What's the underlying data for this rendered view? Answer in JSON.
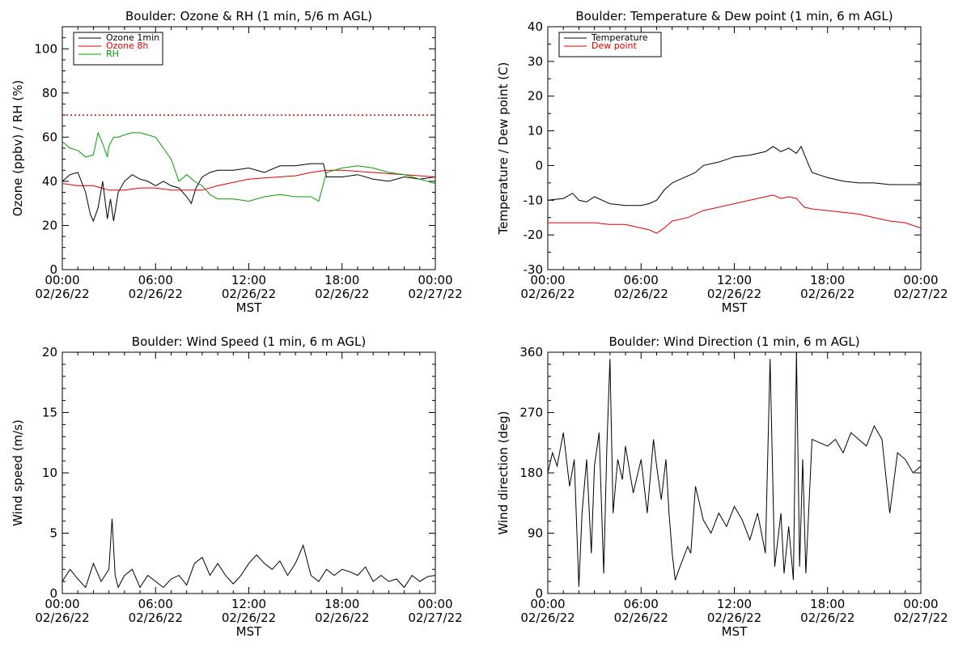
{
  "chart_data": [
    {
      "type": "line",
      "title": "Boulder: Ozone & RH (1 min, 5/6 m AGL)",
      "xlabel": "MST",
      "ylabel": "Ozone (ppbv) / RH (%)",
      "xlim": [
        0,
        24
      ],
      "ylim": [
        0,
        110
      ],
      "x_ticks": [
        0,
        6,
        12,
        18,
        24
      ],
      "x_tick_labels": [
        "00:00",
        "06:00",
        "12:00",
        "18:00",
        "00:00"
      ],
      "x_tick_dates": [
        "02/26/22",
        "02/26/22",
        "02/26/22",
        "02/26/22",
        "02/27/22"
      ],
      "y_ticks": [
        0,
        20,
        40,
        60,
        80,
        100
      ],
      "legend": "top-left",
      "reference_line": {
        "y": 70,
        "color": "#e00000",
        "style": "dotted"
      },
      "series": [
        {
          "name": "Ozone 1min",
          "color": "#000000",
          "x": [
            0,
            0.5,
            1,
            1.5,
            1.8,
            2,
            2.3,
            2.6,
            2.9,
            3.1,
            3.3,
            3.6,
            4,
            4.5,
            5,
            5.5,
            6,
            6.5,
            7,
            7.5,
            8,
            8.3,
            8.6,
            9,
            9.5,
            10,
            11,
            12,
            13,
            14,
            15,
            16,
            16.8,
            17,
            18,
            19,
            20,
            21,
            22,
            23,
            24
          ],
          "y": [
            40,
            43,
            44,
            35,
            25,
            22,
            28,
            40,
            23,
            32,
            22,
            35,
            40,
            43,
            41,
            40,
            38,
            40,
            38,
            37,
            33,
            30,
            37,
            42,
            44,
            45,
            45,
            46,
            44,
            47,
            47,
            48,
            48,
            42,
            42,
            43,
            41,
            40,
            42,
            41,
            42
          ]
        },
        {
          "name": "Ozone 8h",
          "color": "#e00000",
          "x": [
            0,
            1,
            2,
            3,
            4,
            5,
            6,
            7,
            8,
            9,
            10,
            11,
            12,
            13,
            14,
            15,
            16,
            17,
            18,
            19,
            20,
            21,
            22,
            23,
            24
          ],
          "y": [
            39,
            38,
            38,
            36,
            36,
            37,
            37,
            36,
            36,
            36,
            38,
            39.5,
            41,
            41.5,
            42,
            42.5,
            44,
            45,
            45,
            44.5,
            44,
            43.5,
            43,
            42.5,
            42
          ]
        },
        {
          "name": "RH",
          "color": "#00a000",
          "x": [
            0,
            0.5,
            1,
            1.5,
            2,
            2.3,
            2.6,
            2.9,
            3,
            3.3,
            3.6,
            4,
            4.5,
            5,
            5.5,
            6,
            6.5,
            7,
            7.5,
            8,
            8.5,
            9,
            9.5,
            10,
            11,
            12,
            13,
            14,
            15,
            16,
            16.5,
            17,
            18,
            19,
            20,
            21,
            22,
            23,
            24
          ],
          "y": [
            58,
            55,
            54,
            51,
            52,
            62,
            57,
            51,
            56,
            60,
            60,
            61,
            62,
            62,
            61,
            60,
            55,
            50,
            40,
            43,
            40,
            38,
            34,
            32,
            32,
            31,
            33,
            34,
            33,
            33,
            31,
            44,
            46,
            47,
            46,
            44,
            43,
            41,
            39
          ]
        }
      ]
    },
    {
      "type": "line",
      "title": "Boulder: Temperature & Dew point (1 min, 6 m AGL)",
      "xlabel": "MST",
      "ylabel": "Temperature / Dew point (C)",
      "xlim": [
        0,
        24
      ],
      "ylim": [
        -30,
        40
      ],
      "x_ticks": [
        0,
        6,
        12,
        18,
        24
      ],
      "x_tick_labels": [
        "00:00",
        "06:00",
        "12:00",
        "18:00",
        "00:00"
      ],
      "x_tick_dates": [
        "02/26/22",
        "02/26/22",
        "02/26/22",
        "02/26/22",
        "02/27/22"
      ],
      "y_ticks": [
        -30,
        -20,
        -10,
        0,
        10,
        20,
        30,
        40
      ],
      "legend": "top-left",
      "series": [
        {
          "name": "Temperature",
          "color": "#000000",
          "x": [
            0,
            1,
            1.6,
            2,
            2.5,
            3,
            3.5,
            4,
            5,
            6,
            6.5,
            7,
            7.5,
            8,
            8.5,
            9,
            9.5,
            10,
            11,
            12,
            13,
            14,
            14.5,
            15,
            15.5,
            16,
            16.3,
            16.8,
            17,
            18,
            19,
            20,
            21,
            22,
            23,
            24
          ],
          "y": [
            -10,
            -9.5,
            -8,
            -10,
            -10.5,
            -9,
            -10,
            -11,
            -11.5,
            -11.5,
            -11,
            -10,
            -7,
            -5,
            -4,
            -3,
            -2,
            0,
            1,
            2.5,
            3,
            4,
            5.5,
            4,
            5,
            3.5,
            5.5,
            0,
            -2,
            -3.5,
            -4.5,
            -5,
            -5,
            -5.5,
            -5.5,
            -5.5
          ]
        },
        {
          "name": "Dew point",
          "color": "#e00000",
          "x": [
            0,
            1,
            2,
            3,
            4,
            5,
            6,
            6.5,
            7,
            7.5,
            8,
            9,
            10,
            11,
            12,
            13,
            14,
            14.5,
            15,
            15.5,
            16,
            16.5,
            17,
            18,
            19,
            20,
            21,
            22,
            23,
            24
          ],
          "y": [
            -16.5,
            -16.5,
            -16.5,
            -16.5,
            -17,
            -17,
            -18,
            -18.5,
            -19.5,
            -18,
            -16,
            -15,
            -13,
            -12,
            -11,
            -10,
            -9,
            -8.5,
            -9.5,
            -9,
            -9.5,
            -12,
            -12.5,
            -13,
            -13.5,
            -14,
            -15,
            -16,
            -16.5,
            -18
          ]
        }
      ]
    },
    {
      "type": "line",
      "title": "Boulder: Wind Speed (1 min, 6 m AGL)",
      "xlabel": "MST",
      "ylabel": "Wind speed (m/s)",
      "xlim": [
        0,
        24
      ],
      "ylim": [
        0,
        20
      ],
      "x_ticks": [
        0,
        6,
        12,
        18,
        24
      ],
      "x_tick_labels": [
        "00:00",
        "06:00",
        "12:00",
        "18:00",
        "00:00"
      ],
      "x_tick_dates": [
        "02/26/22",
        "02/26/22",
        "02/26/22",
        "02/26/22",
        "02/27/22"
      ],
      "y_ticks": [
        0,
        5,
        10,
        15,
        20
      ],
      "series": [
        {
          "color": "#000000",
          "x": [
            0,
            0.5,
            1,
            1.5,
            2,
            2.5,
            3,
            3.2,
            3.4,
            3.6,
            4,
            4.5,
            5,
            5.5,
            6,
            6.5,
            7,
            7.5,
            8,
            8.5,
            9,
            9.5,
            10,
            10.5,
            11,
            11.5,
            12,
            12.5,
            13,
            13.5,
            14,
            14.5,
            15,
            15.5,
            16,
            16.5,
            17,
            17.5,
            18,
            18.5,
            19,
            19.5,
            20,
            20.5,
            21,
            21.5,
            22,
            22.5,
            23,
            23.5,
            24
          ],
          "y": [
            1,
            2,
            1.2,
            0.5,
            2.5,
            1,
            2,
            6.2,
            1.5,
            0.5,
            1.5,
            2,
            0.5,
            1.5,
            1,
            0.5,
            1.2,
            1.5,
            0.7,
            2.5,
            3,
            1.5,
            2.5,
            1.5,
            0.8,
            1.5,
            2.5,
            3.2,
            2.5,
            2,
            2.7,
            1.5,
            2.5,
            4,
            1.5,
            1,
            2,
            1.5,
            2,
            1.8,
            1.5,
            2.2,
            1,
            1.5,
            1,
            1.2,
            0.5,
            1.5,
            1,
            1.4,
            1.5
          ]
        }
      ]
    },
    {
      "type": "line",
      "title": "Boulder: Wind Direction (1 min, 6 m AGL)",
      "xlabel": "MST",
      "ylabel": "Wind direction (deg)",
      "xlim": [
        0,
        24
      ],
      "ylim": [
        0,
        360
      ],
      "x_ticks": [
        0,
        6,
        12,
        18,
        24
      ],
      "x_tick_labels": [
        "00:00",
        "06:00",
        "12:00",
        "18:00",
        "00:00"
      ],
      "x_tick_dates": [
        "02/26/22",
        "02/26/22",
        "02/26/22",
        "02/26/22",
        "02/27/22"
      ],
      "y_ticks": [
        0,
        90,
        180,
        270,
        360
      ],
      "series": [
        {
          "color": "#000000",
          "x": [
            0,
            0.3,
            0.6,
            1,
            1.4,
            1.7,
            2,
            2.2,
            2.5,
            2.8,
            3,
            3.3,
            3.6,
            3.8,
            4,
            4.2,
            4.5,
            4.8,
            5,
            5.5,
            6,
            6.4,
            6.8,
            7,
            7.3,
            7.6,
            7.8,
            8,
            8.2,
            8.5,
            9,
            9.2,
            9.5,
            10,
            10.5,
            11,
            11.5,
            12,
            12.5,
            13,
            13.5,
            14,
            14.3,
            14.6,
            15,
            15.2,
            15.5,
            15.8,
            16,
            16.2,
            16.4,
            16.6,
            17,
            17.5,
            18,
            18.5,
            19,
            19.5,
            20,
            20.5,
            21,
            21.5,
            22,
            22.5,
            23,
            23.5,
            24
          ],
          "y": [
            180,
            210,
            190,
            240,
            160,
            200,
            10,
            120,
            200,
            60,
            190,
            240,
            30,
            220,
            350,
            120,
            200,
            170,
            220,
            150,
            200,
            120,
            230,
            190,
            140,
            200,
            120,
            60,
            20,
            40,
            70,
            60,
            160,
            110,
            90,
            120,
            100,
            130,
            110,
            80,
            120,
            60,
            350,
            40,
            120,
            30,
            100,
            20,
            360,
            40,
            200,
            30,
            230,
            225,
            220,
            230,
            210,
            240,
            230,
            220,
            250,
            230,
            120,
            210,
            200,
            180,
            190
          ]
        }
      ]
    }
  ]
}
